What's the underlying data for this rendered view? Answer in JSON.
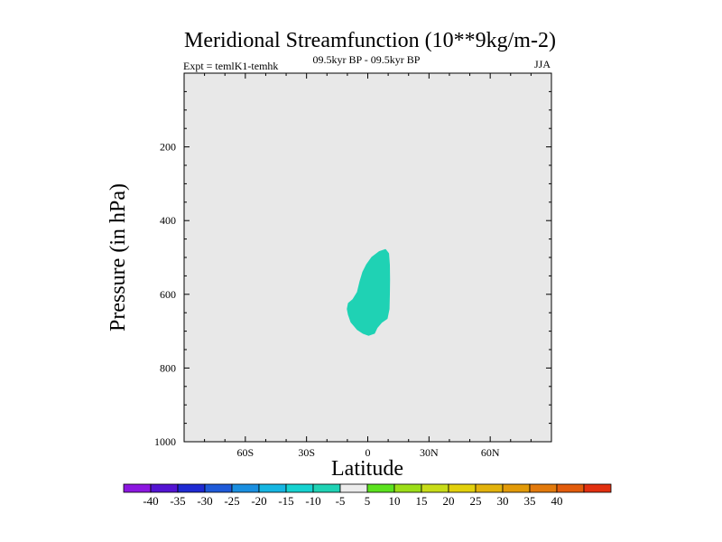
{
  "chart_data": {
    "type": "contour",
    "title": "Meridional Streamfunction (10**9kg/m-2)",
    "subtitle_left": "Expt = temlK1-temhk",
    "subtitle_center": "09.5kyr BP - 09.5kyr BP",
    "subtitle_right": "JJA",
    "xlabel": "Latitude",
    "ylabel": "Pressure (in hPa)",
    "xlim": [
      -90,
      90
    ],
    "ylim": [
      1000,
      0
    ],
    "x_ticks": [
      -60,
      -30,
      0,
      30,
      60
    ],
    "x_tick_labels": [
      "60S",
      "30S",
      "0",
      "30N",
      "60N"
    ],
    "y_ticks": [
      200,
      400,
      600,
      800,
      1000
    ],
    "y_tick_labels": [
      "200",
      "400",
      "600",
      "800",
      "1000"
    ],
    "background_color": "#e8e8e8",
    "filled_regions": [
      {
        "level_range": "-10 to -5",
        "color": "#1fd2b4",
        "outline": [
          [
            8.6,
            480
          ],
          [
            10,
            490
          ],
          [
            10.4,
            520
          ],
          [
            10.5,
            560
          ],
          [
            10.4,
            600
          ],
          [
            10.2,
            640
          ],
          [
            9.3,
            665
          ],
          [
            6.7,
            675
          ],
          [
            4.4,
            690
          ],
          [
            3.1,
            705
          ],
          [
            0.4,
            710
          ],
          [
            -2.2,
            705
          ],
          [
            -4.9,
            695
          ],
          [
            -8,
            675
          ],
          [
            -9.3,
            655
          ],
          [
            -9.8,
            640
          ],
          [
            -9.3,
            625
          ],
          [
            -7.1,
            615
          ],
          [
            -4.9,
            595
          ],
          [
            -3.6,
            565
          ],
          [
            -2.2,
            540
          ],
          [
            -0.4,
            520
          ],
          [
            2.2,
            500
          ],
          [
            5.8,
            485
          ]
        ]
      }
    ],
    "colorbar": {
      "colors": [
        "#8c17e0",
        "#5414d2",
        "#1f2ad2",
        "#1f5ad8",
        "#1a8fe0",
        "#16b6e2",
        "#16d2d0",
        "#1fd2b4",
        "#ececec",
        "#5ce21f",
        "#9cde18",
        "#c8dc18",
        "#e2d00c",
        "#e2b20c",
        "#e29a08",
        "#e27a0c",
        "#e25c0c",
        "#e23010"
      ],
      "labels": [
        "-40",
        "-35",
        "-30",
        "-25",
        "-20",
        "-15",
        "-10",
        "-5",
        "5",
        "10",
        "15",
        "20",
        "25",
        "30",
        "35",
        "40"
      ]
    }
  }
}
